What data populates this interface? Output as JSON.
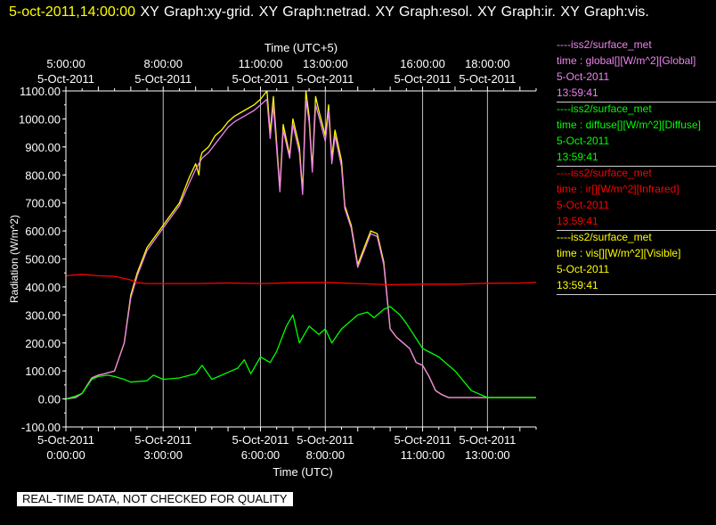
{
  "header": {
    "timestamp": "5-oct-2011,14:00:00",
    "graphs_text": "XY Graph:xy-grid.  XY Graph:netrad.  XY Graph:esol.  XY Graph:ir.  XY Graph:vis."
  },
  "footer_note": "REAL-TIME DATA, NOT CHECKED FOR QUALITY",
  "colors": {
    "global": "#ee82ee",
    "diffuse": "#00ff00",
    "ir": "#ff0000",
    "vis": "#ffff00",
    "background": "#000000",
    "grid": "#ffffff"
  },
  "legend": [
    {
      "source": "----iss2/surface_met",
      "variable": "time : global[][W/m^2][Global]",
      "date": "5-Oct-2011",
      "time": "13:59:41",
      "color": "#ee82ee"
    },
    {
      "source": "----iss2/surface_met",
      "variable": "time : diffuse[][W/m^2][Diffuse]",
      "date": "5-Oct-2011",
      "time": "13:59:41",
      "color": "#00ff00"
    },
    {
      "source": "----iss2/surface_met",
      "variable": "time : ir[][W/m^2][Infrared]",
      "date": "5-Oct-2011",
      "time": "13:59:41",
      "color": "#ff0000"
    },
    {
      "source": "----iss2/surface_met",
      "variable": "time : vis[][W/m^2][Visible]",
      "date": "5-Oct-2011",
      "time": "13:59:41",
      "color": "#ffff00"
    }
  ],
  "chart_data": {
    "type": "line",
    "ylabel": "Radiation  (W/m^2)",
    "xlabel_bottom": "Time (UTC)",
    "xlabel_top": "Time (UTC+5)",
    "xlim_hours_utc": [
      0,
      14.5
    ],
    "ylim": [
      -100,
      1100
    ],
    "y_ticks": [
      -100,
      0,
      100,
      200,
      300,
      400,
      500,
      600,
      700,
      800,
      900,
      1000,
      1100
    ],
    "y_tick_labels": [
      "-100.00",
      "0.00",
      "100.00",
      "200.00",
      "300.00",
      "400.00",
      "500.00",
      "600.00",
      "700.00",
      "800.00",
      "900.00",
      "1000.00",
      "1100.00"
    ],
    "grid": "vertical lines at labeled time ticks",
    "bottom_ticks": [
      {
        "hour": 0,
        "date": "5-Oct-2011",
        "time": "0:00:00"
      },
      {
        "hour": 3,
        "date": "5-Oct-2011",
        "time": "3:00:00"
      },
      {
        "hour": 6,
        "date": "5-Oct-2011",
        "time": "6:00:00"
      },
      {
        "hour": 8,
        "date": "5-Oct-2011",
        "time": "8:00:00"
      },
      {
        "hour": 11,
        "date": "5-Oct-2011",
        "time": "11:00:00"
      },
      {
        "hour": 13,
        "date": "5-Oct-2011",
        "time": "13:00:00"
      }
    ],
    "top_ticks": [
      {
        "hour": 0,
        "date": "5-Oct-2011",
        "time": "5:00:00"
      },
      {
        "hour": 3,
        "date": "5-Oct-2011",
        "time": "8:00:00"
      },
      {
        "hour": 6,
        "date": "5-Oct-2011",
        "time": "11:00:00"
      },
      {
        "hour": 8,
        "date": "5-Oct-2011",
        "time": "13:00:00"
      },
      {
        "hour": 11,
        "date": "5-Oct-2011",
        "time": "16:00:00"
      },
      {
        "hour": 13,
        "date": "5-Oct-2011",
        "time": "18:00:00"
      }
    ],
    "series": [
      {
        "name": "vis",
        "color": "#ffff00",
        "x": [
          0,
          0.3,
          0.5,
          0.8,
          1.0,
          1.2,
          1.5,
          1.8,
          2.0,
          2.2,
          2.5,
          3.0,
          3.5,
          3.8,
          4.0,
          4.1,
          4.15,
          4.2,
          4.4,
          4.6,
          4.8,
          5.0,
          5.2,
          5.5,
          5.8,
          6.0,
          6.2,
          6.3,
          6.4,
          6.6,
          6.7,
          6.9,
          7.0,
          7.2,
          7.3,
          7.4,
          7.5,
          7.6,
          7.7,
          7.8,
          8.0,
          8.1,
          8.2,
          8.3,
          8.5,
          8.6,
          8.8,
          9.0,
          9.2,
          9.4,
          9.6,
          9.8,
          10.0,
          10.2,
          10.4,
          10.6,
          10.8,
          11.0,
          11.2,
          11.4,
          11.6,
          11.8,
          12.0,
          12.2,
          12.4,
          12.6,
          12.8,
          13.0,
          13.5,
          14.0,
          14.5
        ],
        "y": [
          0,
          5,
          20,
          75,
          85,
          90,
          100,
          200,
          370,
          450,
          540,
          620,
          700,
          790,
          840,
          800,
          860,
          880,
          900,
          940,
          960,
          990,
          1010,
          1030,
          1050,
          1070,
          1100,
          950,
          1080,
          750,
          980,
          870,
          1000,
          900,
          740,
          1100,
          1010,
          820,
          1080,
          1030,
          940,
          1050,
          860,
          960,
          850,
          690,
          620,
          480,
          540,
          600,
          590,
          490,
          250,
          220,
          200,
          180,
          130,
          120,
          80,
          30,
          15,
          5,
          5,
          5,
          5,
          5,
          5,
          5,
          5,
          5,
          5
        ]
      },
      {
        "name": "global",
        "color": "#ee82ee",
        "x": [
          0,
          0.3,
          0.5,
          0.8,
          1.0,
          1.2,
          1.5,
          1.8,
          2.0,
          2.2,
          2.5,
          3.0,
          3.5,
          3.8,
          4.0,
          4.2,
          4.4,
          4.6,
          4.8,
          5.0,
          5.2,
          5.5,
          5.8,
          6.0,
          6.2,
          6.3,
          6.4,
          6.6,
          6.7,
          6.9,
          7.0,
          7.2,
          7.3,
          7.4,
          7.5,
          7.6,
          7.7,
          7.8,
          8.0,
          8.1,
          8.2,
          8.3,
          8.5,
          8.6,
          8.8,
          9.0,
          9.2,
          9.4,
          9.6,
          9.8,
          10.0,
          10.2,
          10.4,
          10.6,
          10.8,
          11.0,
          11.2,
          11.4,
          11.6,
          11.8,
          12.0,
          12.5,
          13.0,
          13.5,
          14.0,
          14.5
        ],
        "y": [
          0,
          5,
          20,
          75,
          85,
          90,
          100,
          200,
          360,
          440,
          530,
          610,
          690,
          770,
          820,
          860,
          880,
          910,
          940,
          970,
          990,
          1010,
          1030,
          1050,
          1070,
          930,
          1050,
          740,
          960,
          860,
          980,
          880,
          730,
          1070,
          990,
          810,
          1050,
          1010,
          920,
          1030,
          840,
          940,
          830,
          680,
          610,
          470,
          530,
          590,
          580,
          480,
          250,
          220,
          200,
          180,
          130,
          120,
          80,
          30,
          15,
          5,
          5,
          5,
          5,
          5,
          5,
          5
        ]
      },
      {
        "name": "ir",
        "color": "#ff0000",
        "x": [
          0,
          0.5,
          1.0,
          1.5,
          2.0,
          2.2,
          2.5,
          3.0,
          4.0,
          5.0,
          6.0,
          7.0,
          8.0,
          9.0,
          10.0,
          11.0,
          12.0,
          13.0,
          14.0,
          14.5
        ],
        "y": [
          440,
          445,
          440,
          438,
          425,
          415,
          412,
          412,
          412,
          414,
          412,
          415,
          416,
          412,
          408,
          410,
          410,
          413,
          414,
          416
        ]
      },
      {
        "name": "diffuse",
        "color": "#00ff00",
        "x": [
          0,
          0.3,
          0.5,
          0.8,
          1.0,
          1.3,
          1.5,
          1.8,
          2.0,
          2.5,
          2.7,
          3.0,
          3.5,
          4.0,
          4.2,
          4.5,
          5.0,
          5.3,
          5.5,
          5.7,
          6.0,
          6.3,
          6.5,
          6.8,
          7.0,
          7.2,
          7.5,
          7.8,
          8.0,
          8.2,
          8.5,
          8.8,
          9.0,
          9.3,
          9.5,
          9.8,
          10.0,
          10.3,
          10.5,
          11.0,
          11.5,
          12.0,
          12.5,
          13.0,
          13.5,
          14.0,
          14.5
        ],
        "y": [
          0,
          10,
          20,
          70,
          80,
          85,
          80,
          70,
          60,
          65,
          85,
          70,
          75,
          90,
          120,
          70,
          95,
          110,
          140,
          90,
          150,
          130,
          170,
          260,
          300,
          200,
          260,
          230,
          250,
          200,
          250,
          280,
          300,
          310,
          290,
          320,
          330,
          300,
          270,
          180,
          150,
          100,
          30,
          5,
          5,
          5,
          5
        ]
      }
    ]
  }
}
